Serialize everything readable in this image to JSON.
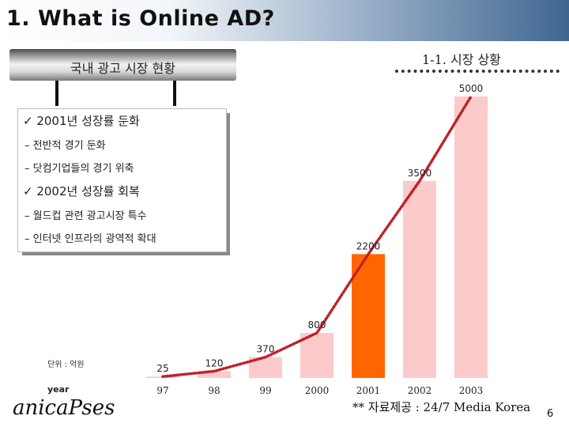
{
  "slide": {
    "title": "1. What is Online AD?",
    "section_label": "1-1. 시장 상황",
    "banner_text": "국내 광고 시장 현황",
    "unit_label": "단위 : 억원",
    "year_label": "year",
    "logo_text": "anicaPses",
    "source_label": "** 자료제공 : 24/7 Media Korea",
    "page_number": "6"
  },
  "info_box": {
    "lines": [
      {
        "text": "✓ 2001년 성장률 둔화",
        "kind": "main"
      },
      {
        "text": "– 전반적 경기 둔화",
        "kind": "sub"
      },
      {
        "text": "– 닷컴기업들의 경기 위축",
        "kind": "sub"
      },
      {
        "text": "✓ 2002년 성장률 회복",
        "kind": "main"
      },
      {
        "text": "– 월드컵 관련 광고시장 특수",
        "kind": "sub"
      },
      {
        "text": "– 인터넷 인프라의 광역적 확대",
        "kind": "sub"
      }
    ]
  },
  "chart_data": {
    "type": "bar",
    "categories": [
      "97",
      "98",
      "99",
      "2000",
      "2001",
      "2002",
      "2003"
    ],
    "values": [
      25,
      120,
      370,
      800,
      2200,
      3500,
      5000
    ],
    "value_labels": [
      "25",
      "120",
      "370",
      "800",
      "2200",
      "3500",
      "5000"
    ],
    "title": "",
    "xlabel": "year",
    "ylabel": "",
    "unit": "단위 : 억원",
    "ylim": [
      0,
      5000
    ],
    "highlight_index": 4,
    "trend_line": "dotted",
    "grid": false,
    "colors": {
      "bar": "#fccaca",
      "highlight": "#ff6600",
      "trend": "#c0202a"
    }
  }
}
